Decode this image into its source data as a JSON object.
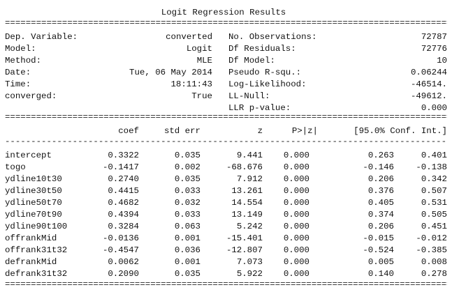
{
  "title": "Logit Regression Results",
  "corner_mark": "'''",
  "rule_char_double": "=",
  "rule_char_single": "-",
  "summary_left": [
    {
      "label": "Dep. Variable:",
      "value": "converted"
    },
    {
      "label": "Model:",
      "value": "Logit"
    },
    {
      "label": "Method:",
      "value": "MLE"
    },
    {
      "label": "Date:",
      "value": "Tue, 06 May 2014"
    },
    {
      "label": "Time:",
      "value": "18:11:43"
    },
    {
      "label": "converged:",
      "value": "True"
    }
  ],
  "summary_right": [
    {
      "label": "No. Observations:",
      "value": "72787"
    },
    {
      "label": "Df Residuals:",
      "value": "72776"
    },
    {
      "label": "Df Model:",
      "value": "10"
    },
    {
      "label": "Pseudo R-squ.:",
      "value": "0.06244"
    },
    {
      "label": "Log-Likelihood:",
      "value": "-46514."
    },
    {
      "label": "LL-Null:",
      "value": "-49612."
    },
    {
      "label": "LLR p-value:",
      "value": "0.000"
    }
  ],
  "coef_headers": [
    "coef",
    "std err",
    "z",
    "P>|z|",
    "[95.0% Conf. Int.]"
  ],
  "coef_rows": [
    {
      "name": "intercept",
      "coef": "0.3322",
      "std_err": "0.035",
      "z": "9.441",
      "p": "0.000",
      "ci_low": "0.263",
      "ci_high": "0.401"
    },
    {
      "name": "togo",
      "coef": "-0.1417",
      "std_err": "0.002",
      "z": "-68.676",
      "p": "0.000",
      "ci_low": "-0.146",
      "ci_high": "-0.138"
    },
    {
      "name": "ydline10t30",
      "coef": "0.2740",
      "std_err": "0.035",
      "z": "7.912",
      "p": "0.000",
      "ci_low": "0.206",
      "ci_high": "0.342"
    },
    {
      "name": "ydline30t50",
      "coef": "0.4415",
      "std_err": "0.033",
      "z": "13.261",
      "p": "0.000",
      "ci_low": "0.376",
      "ci_high": "0.507"
    },
    {
      "name": "ydline50t70",
      "coef": "0.4682",
      "std_err": "0.032",
      "z": "14.554",
      "p": "0.000",
      "ci_low": "0.405",
      "ci_high": "0.531"
    },
    {
      "name": "ydline70t90",
      "coef": "0.4394",
      "std_err": "0.033",
      "z": "13.149",
      "p": "0.000",
      "ci_low": "0.374",
      "ci_high": "0.505"
    },
    {
      "name": "ydline90t100",
      "coef": "0.3284",
      "std_err": "0.063",
      "z": "5.242",
      "p": "0.000",
      "ci_low": "0.206",
      "ci_high": "0.451"
    },
    {
      "name": "offrankMid",
      "coef": "-0.0136",
      "std_err": "0.001",
      "z": "-15.401",
      "p": "0.000",
      "ci_low": "-0.015",
      "ci_high": "-0.012"
    },
    {
      "name": "offrank31t32",
      "coef": "-0.4547",
      "std_err": "0.036",
      "z": "-12.807",
      "p": "0.000",
      "ci_low": "-0.524",
      "ci_high": "-0.385"
    },
    {
      "name": "defrankMid",
      "coef": "0.0062",
      "std_err": "0.001",
      "z": "7.073",
      "p": "0.000",
      "ci_low": "0.005",
      "ci_high": "0.008"
    },
    {
      "name": "defrank31t32",
      "coef": "0.2090",
      "std_err": "0.035",
      "z": "5.922",
      "p": "0.000",
      "ci_low": "0.140",
      "ci_high": "0.278"
    }
  ]
}
